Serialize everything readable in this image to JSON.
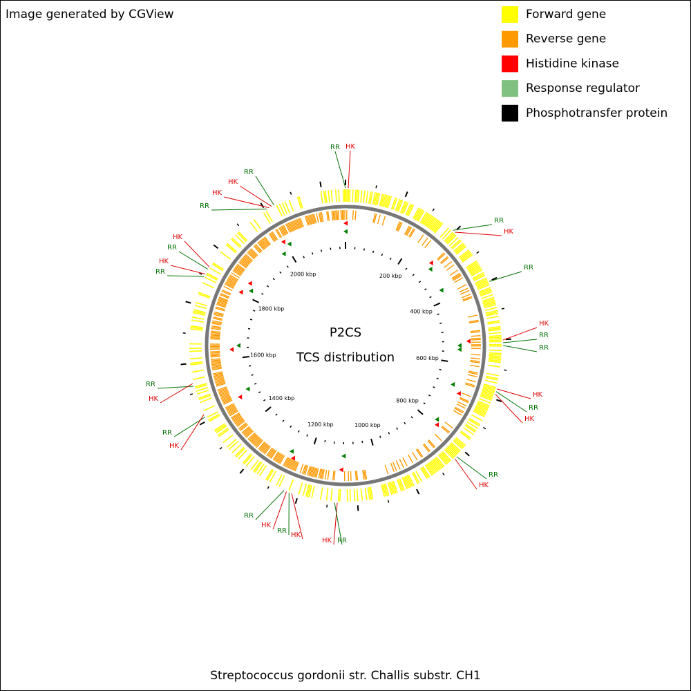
{
  "header": {
    "title": "Image generated by CGView"
  },
  "legend": [
    {
      "label": "Forward gene",
      "color": "#ffff00"
    },
    {
      "label": "Reverse gene",
      "color": "#ff9900"
    },
    {
      "label": "Histidine kinase",
      "color": "#ff0000"
    },
    {
      "label": "Response regulator",
      "color": "#80c080"
    },
    {
      "label": "Phosphotransfer protein",
      "color": "#000000"
    }
  ],
  "center": {
    "title": "P2CS",
    "subtitle": "TCS distribution"
  },
  "ticks": [
    "200 kbp",
    "400 kbp",
    "600 kbp",
    "800 kbp",
    "1000 kbp",
    "1200 kbp",
    "1400 kbp",
    "1600 kbp",
    "1800 kbp",
    "2000 kbp"
  ],
  "features": [
    "RR",
    "HK",
    "RR",
    "HK",
    "RR",
    "HK",
    "RR",
    "RR",
    "HK",
    "RR",
    "HK",
    "RR",
    "HK",
    "HK",
    "RR",
    "HK",
    "RR",
    "HK",
    "RR",
    "RR",
    "HK",
    "RR",
    "HK",
    "RR",
    "HK",
    "RR",
    "HK",
    "RR",
    "HK",
    "HK",
    "RR"
  ],
  "footer": {
    "organism": "Streptococcus gordonii str. Challis substr. CH1"
  }
}
